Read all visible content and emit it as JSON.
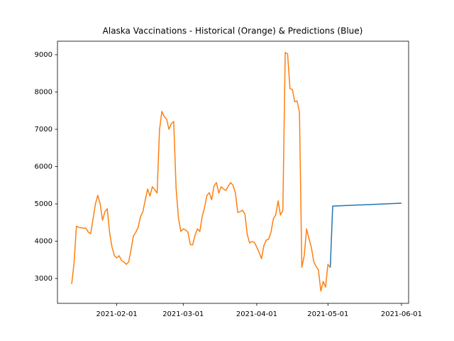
{
  "chart_data": {
    "type": "line",
    "title": "Alaska Vaccinations - Historical (Orange) & Predictions (Blue)",
    "xlim": [
      "2021-01-07",
      "2021-06-04"
    ],
    "xticks": [
      "2021-02-01",
      "2021-03-01",
      "2021-04-01",
      "2021-05-01",
      "2021-06-01"
    ],
    "ylim": [
      2333,
      9362
    ],
    "yticks": [
      3000,
      4000,
      5000,
      6000,
      7000,
      8000,
      9000
    ],
    "grid": false,
    "series": [
      {
        "name": "Predictions",
        "color": "#1f77b4",
        "x": [
          "2021-05-02",
          "2021-05-03",
          "2021-06-01"
        ],
        "values": [
          3290,
          4940,
          5020
        ]
      },
      {
        "name": "Historical",
        "color": "#ff7f0e",
        "x": [
          "2021-01-13",
          "2021-01-14",
          "2021-01-15",
          "2021-01-16",
          "2021-01-17",
          "2021-01-18",
          "2021-01-19",
          "2021-01-20",
          "2021-01-21",
          "2021-01-22",
          "2021-01-23",
          "2021-01-24",
          "2021-01-25",
          "2021-01-26",
          "2021-01-27",
          "2021-01-28",
          "2021-01-29",
          "2021-01-30",
          "2021-01-31",
          "2021-02-01",
          "2021-02-02",
          "2021-02-03",
          "2021-02-04",
          "2021-02-05",
          "2021-02-06",
          "2021-02-07",
          "2021-02-08",
          "2021-02-09",
          "2021-02-10",
          "2021-02-11",
          "2021-02-12",
          "2021-02-13",
          "2021-02-14",
          "2021-02-15",
          "2021-02-16",
          "2021-02-17",
          "2021-02-18",
          "2021-02-19",
          "2021-02-20",
          "2021-02-21",
          "2021-02-22",
          "2021-02-23",
          "2021-02-24",
          "2021-02-25",
          "2021-02-26",
          "2021-02-27",
          "2021-02-28",
          "2021-03-01",
          "2021-03-02",
          "2021-03-03",
          "2021-03-04",
          "2021-03-05",
          "2021-03-06",
          "2021-03-07",
          "2021-03-08",
          "2021-03-09",
          "2021-03-10",
          "2021-03-11",
          "2021-03-12",
          "2021-03-13",
          "2021-03-14",
          "2021-03-15",
          "2021-03-16",
          "2021-03-17",
          "2021-03-18",
          "2021-03-19",
          "2021-03-20",
          "2021-03-21",
          "2021-03-22",
          "2021-03-23",
          "2021-03-24",
          "2021-03-25",
          "2021-03-26",
          "2021-03-27",
          "2021-03-28",
          "2021-03-29",
          "2021-03-30",
          "2021-03-31",
          "2021-04-01",
          "2021-04-02",
          "2021-04-03",
          "2021-04-04",
          "2021-04-05",
          "2021-04-06",
          "2021-04-07",
          "2021-04-08",
          "2021-04-09",
          "2021-04-10",
          "2021-04-11",
          "2021-04-12",
          "2021-04-13",
          "2021-04-14",
          "2021-04-15",
          "2021-04-16",
          "2021-04-17",
          "2021-04-18",
          "2021-04-19",
          "2021-04-20",
          "2021-04-21",
          "2021-04-22",
          "2021-04-23",
          "2021-04-24",
          "2021-04-25",
          "2021-04-26",
          "2021-04-27",
          "2021-04-28",
          "2021-04-29",
          "2021-04-30",
          "2021-05-01",
          "2021-05-02"
        ],
        "values": [
          2850,
          3420,
          4400,
          4370,
          4360,
          4350,
          4350,
          4240,
          4200,
          4600,
          5000,
          5230,
          5000,
          4560,
          4790,
          4870,
          4220,
          3840,
          3610,
          3550,
          3610,
          3480,
          3440,
          3380,
          3440,
          3760,
          4140,
          4240,
          4370,
          4660,
          4790,
          5100,
          5400,
          5210,
          5460,
          5380,
          5290,
          6980,
          7480,
          7340,
          7270,
          7000,
          7150,
          7210,
          5420,
          4620,
          4260,
          4330,
          4300,
          4240,
          3910,
          3900,
          4160,
          4330,
          4260,
          4660,
          4900,
          5230,
          5300,
          5110,
          5480,
          5570,
          5290,
          5460,
          5400,
          5360,
          5480,
          5570,
          5500,
          5290,
          4770,
          4790,
          4830,
          4730,
          4180,
          3950,
          3990,
          3970,
          3840,
          3700,
          3530,
          3880,
          4030,
          4050,
          4240,
          4600,
          4710,
          5080,
          4700,
          4830,
          9060,
          9020,
          8090,
          8070,
          7740,
          7760,
          7460,
          3300,
          3610,
          4330,
          4070,
          3840,
          3460,
          3320,
          3230,
          2660,
          2920,
          2770,
          3380,
          3290
        ]
      }
    ]
  }
}
